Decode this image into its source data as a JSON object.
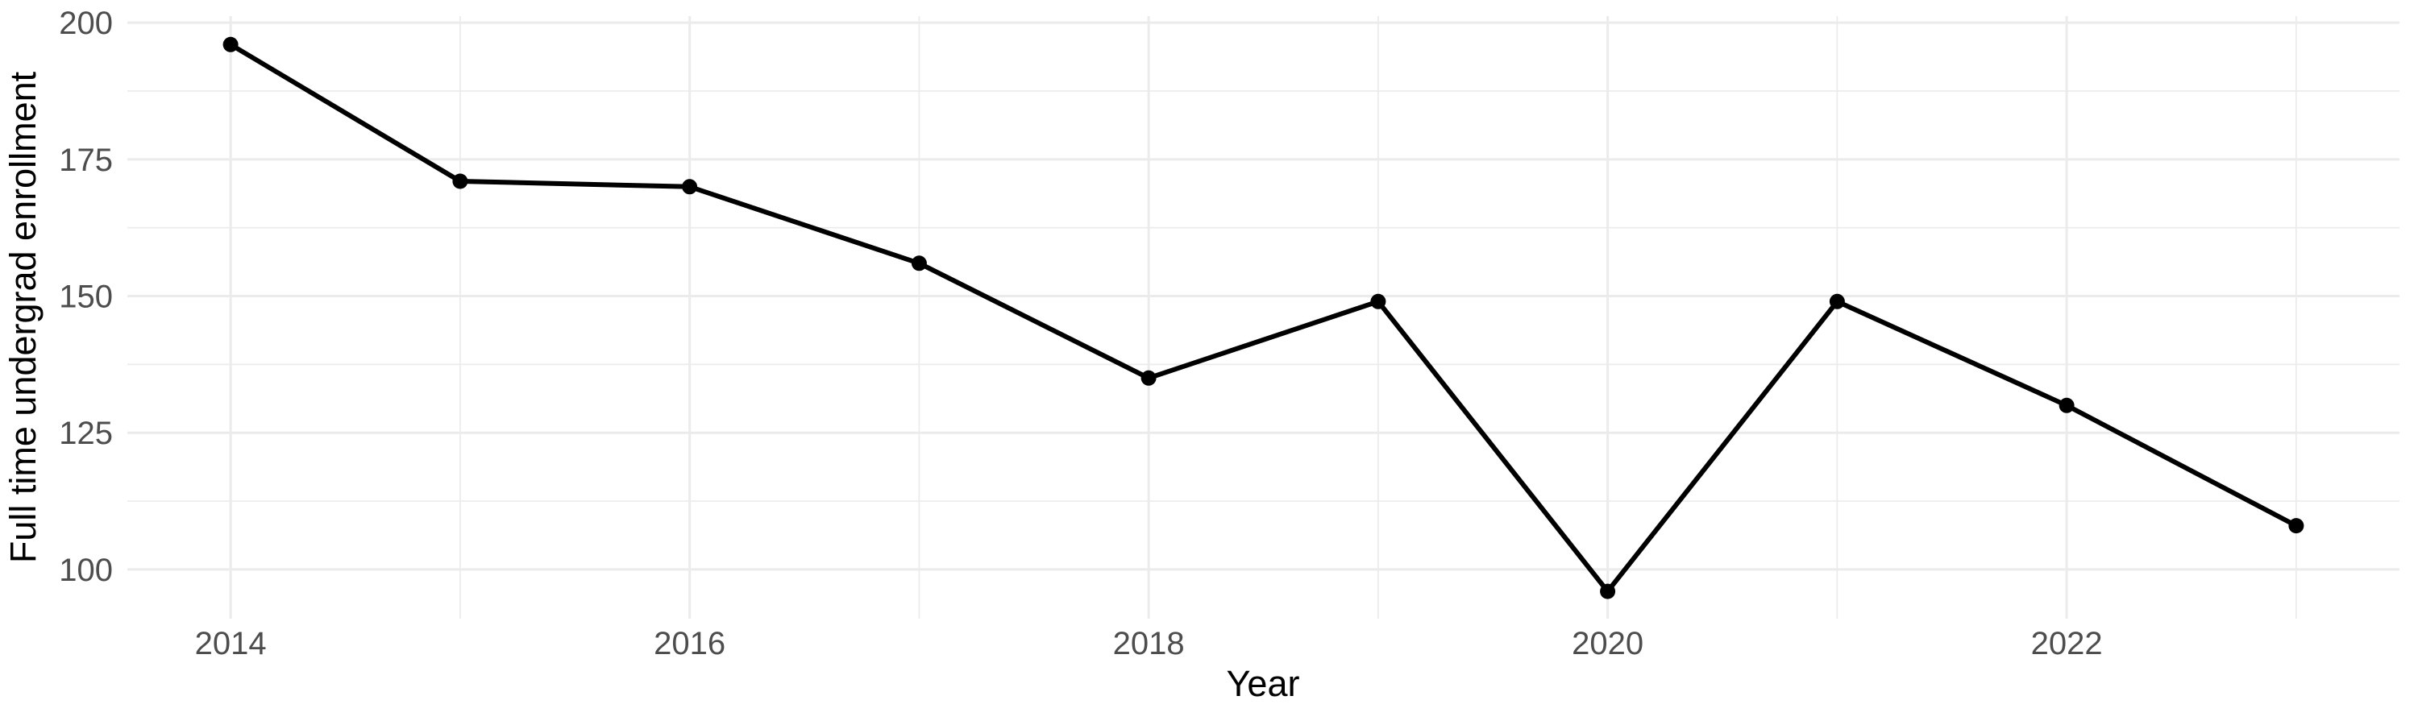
{
  "chart_data": {
    "type": "line",
    "title": "",
    "xlabel": "Year",
    "ylabel": "Full time undergrad enrollment",
    "x": [
      2014,
      2015,
      2016,
      2017,
      2018,
      2019,
      2020,
      2021,
      2022,
      2023
    ],
    "values": [
      196,
      171,
      170,
      156,
      135,
      149,
      96,
      149,
      130,
      108
    ],
    "xlim": [
      2013.55,
      2023.45
    ],
    "ylim": [
      91.0,
      201.2
    ],
    "x_major_ticks": [
      2014,
      2016,
      2018,
      2020,
      2022
    ],
    "x_major_labels": [
      "2014",
      "2016",
      "2018",
      "2020",
      "2022"
    ],
    "x_minor_ticks": [
      2015,
      2017,
      2019,
      2021,
      2023
    ],
    "y_major_ticks": [
      200,
      175,
      150,
      125,
      100
    ],
    "y_major_labels": [
      "200",
      "175",
      "150",
      "125",
      "100"
    ],
    "y_minor_ticks": [
      187.5,
      162.5,
      137.5,
      112.5
    ],
    "grid": "major+minor",
    "legend": "none",
    "style": {
      "line_color": "#000000",
      "point_color": "#000000",
      "grid_color": "#EBEBEB",
      "tick_label_color": "#4D4D4D",
      "axis_title_color": "#000000",
      "background": "#FFFFFF"
    }
  }
}
